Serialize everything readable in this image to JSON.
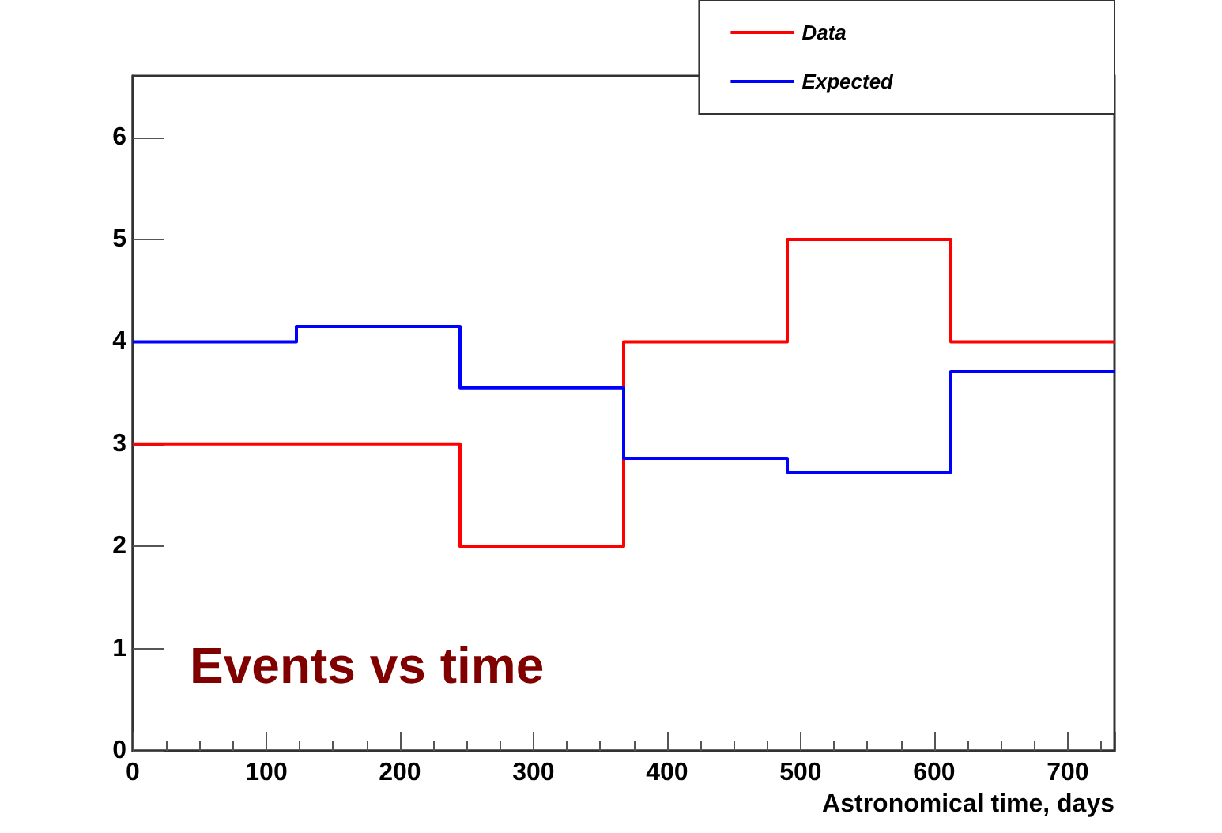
{
  "chart_data": {
    "type": "step",
    "xlabel": "Astronomical time, days",
    "annotations": [
      "Events vs time"
    ],
    "x": [
      0,
      122.5,
      245,
      367.5,
      490,
      612.5,
      735
    ],
    "series": [
      {
        "name": "Data",
        "color": "#ff0000",
        "values": [
          3,
          3,
          2,
          4,
          5,
          4,
          4
        ]
      },
      {
        "name": "Expected",
        "color": "#0000ff",
        "values": [
          4,
          4.15,
          3.55,
          2.86,
          2.72,
          3.71,
          3.71
        ]
      }
    ],
    "xlim": [
      0,
      735
    ],
    "xticks": [
      0,
      100,
      200,
      300,
      400,
      500,
      600,
      700
    ],
    "ylim": [
      0,
      6.6
    ],
    "yticks": [
      0,
      1,
      2,
      3,
      4,
      5,
      6
    ],
    "grid": false,
    "legend": "top right",
    "marker": "none",
    "line_style": "solid"
  }
}
